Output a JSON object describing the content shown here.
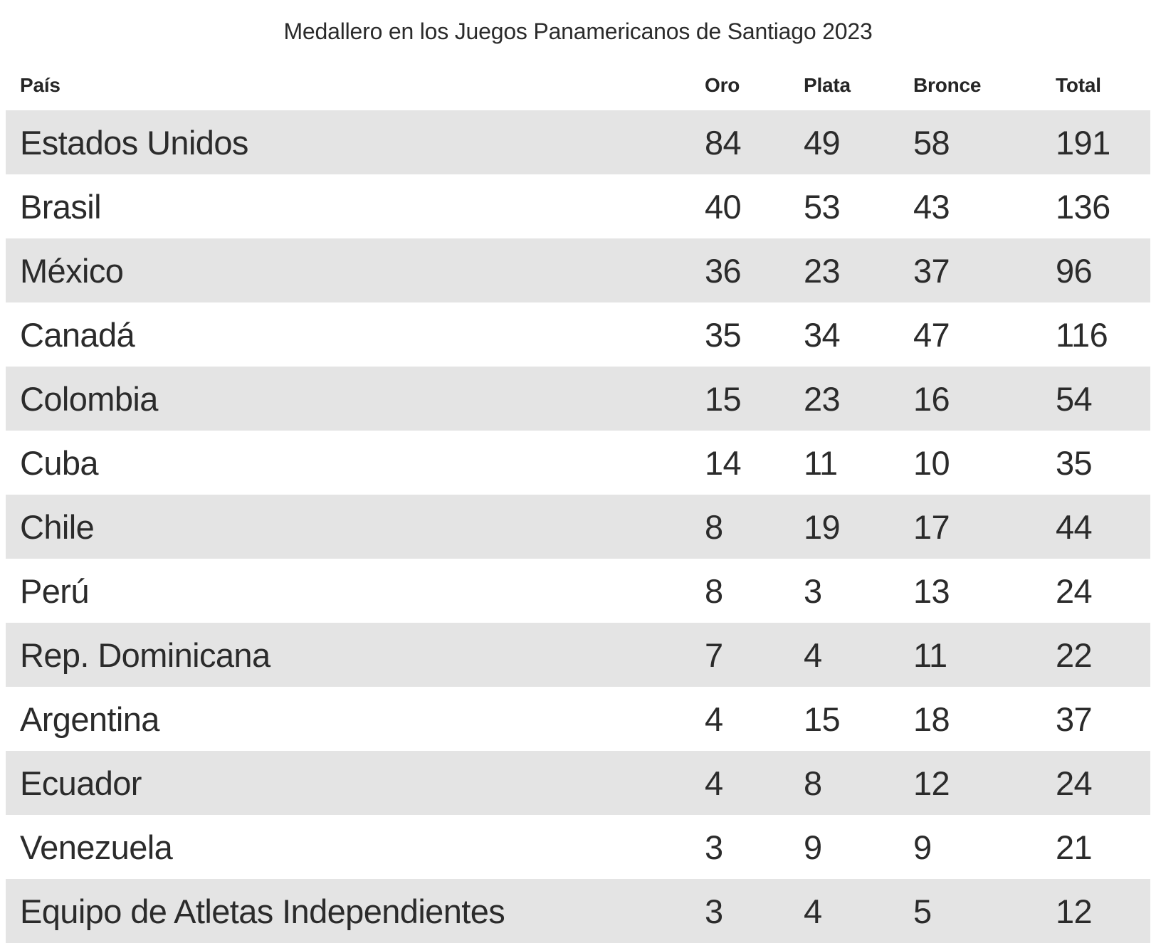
{
  "title": "Medallero en los Juegos Panamericanos de Santiago 2023",
  "chart_data": {
    "type": "table",
    "title": "Medallero en los Juegos Panamericanos de Santiago 2023",
    "columns": [
      "País",
      "Oro",
      "Plata",
      "Bronce",
      "Total"
    ],
    "rows": [
      {
        "country": "Estados Unidos",
        "oro": "84",
        "plata": "49",
        "bronce": "58",
        "total": "191"
      },
      {
        "country": "Brasil",
        "oro": "40",
        "plata": "53",
        "bronce": "43",
        "total": "136"
      },
      {
        "country": "México",
        "oro": "36",
        "plata": "23",
        "bronce": "37",
        "total": "96"
      },
      {
        "country": "Canadá",
        "oro": "35",
        "plata": "34",
        "bronce": "47",
        "total": "116"
      },
      {
        "country": "Colombia",
        "oro": "15",
        "plata": "23",
        "bronce": "16",
        "total": "54"
      },
      {
        "country": "Cuba",
        "oro": "14",
        "plata": "11",
        "bronce": "10",
        "total": "35"
      },
      {
        "country": "Chile",
        "oro": "8",
        "plata": "19",
        "bronce": "17",
        "total": "44"
      },
      {
        "country": "Perú",
        "oro": "8",
        "plata": "3",
        "bronce": "13",
        "total": "24"
      },
      {
        "country": "Rep. Dominicana",
        "oro": "7",
        "plata": "4",
        "bronce": "11",
        "total": "22"
      },
      {
        "country": "Argentina",
        "oro": "4",
        "plata": "15",
        "bronce": "18",
        "total": "37"
      },
      {
        "country": "Ecuador",
        "oro": "4",
        "plata": "8",
        "bronce": "12",
        "total": "24"
      },
      {
        "country": "Venezuela",
        "oro": "3",
        "plata": "9",
        "bronce": "9",
        "total": "21"
      },
      {
        "country": "Equipo de Atletas Independientes",
        "oro": "3",
        "plata": "4",
        "bronce": "5",
        "total": "12"
      }
    ],
    "layout": {
      "striped_rows": true,
      "first_row_striped": true,
      "grid": "off",
      "legend": "none"
    }
  },
  "colors": {
    "background": "#ffffff",
    "stripe": "#e4e4e4",
    "text": "#2b2b2b",
    "header_text": "#262626"
  }
}
